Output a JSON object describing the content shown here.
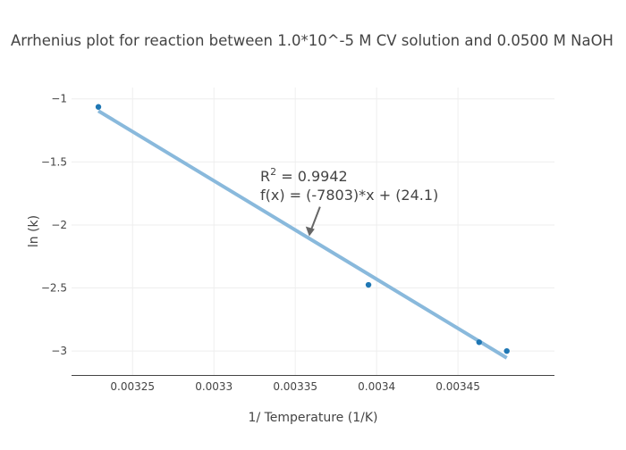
{
  "chart_data": {
    "type": "scatter",
    "title": "Arrhenius plot for reaction between 1.0*10^-5 M CV solution and 0.0500 M NaOH",
    "xlabel": "1/ Temperature (1/K)",
    "ylabel": "ln (k)",
    "xlim": [
      0.0032125,
      0.0035093
    ],
    "ylim": [
      -3.19,
      -0.91
    ],
    "grid": true,
    "xticks": [
      0.00325,
      0.0033,
      0.00335,
      0.0034,
      0.00345
    ],
    "xtick_labels": [
      "0.00325",
      "0.0033",
      "0.00335",
      "0.0034",
      "0.00345"
    ],
    "yticks": [
      -1,
      -1.5,
      -2,
      -2.5,
      -3
    ],
    "ytick_labels": [
      "−1",
      "−1.5",
      "−2",
      "−2.5",
      "−3"
    ],
    "series": [
      {
        "name": "data",
        "mode": "markers",
        "color": "#1f77b4",
        "x": [
          0.003229,
          0.003395,
          0.003463,
          0.00348
        ],
        "y": [
          -1.064,
          -2.475,
          -2.93,
          -3.0
        ]
      },
      {
        "name": "fit",
        "mode": "line",
        "color": "#89b9dc",
        "slope": -7803,
        "intercept": 24.1,
        "x": [
          0.003229,
          0.00348
        ]
      }
    ],
    "annotation": {
      "r2_prefix": "R",
      "r2_sup": "2",
      "r2_value": " = 0.9942",
      "equation": "f(x) = (-7803)*x + (24.1)",
      "arrow_point": [
        0.0033586,
        -2.09
      ],
      "color": "#666666"
    }
  }
}
